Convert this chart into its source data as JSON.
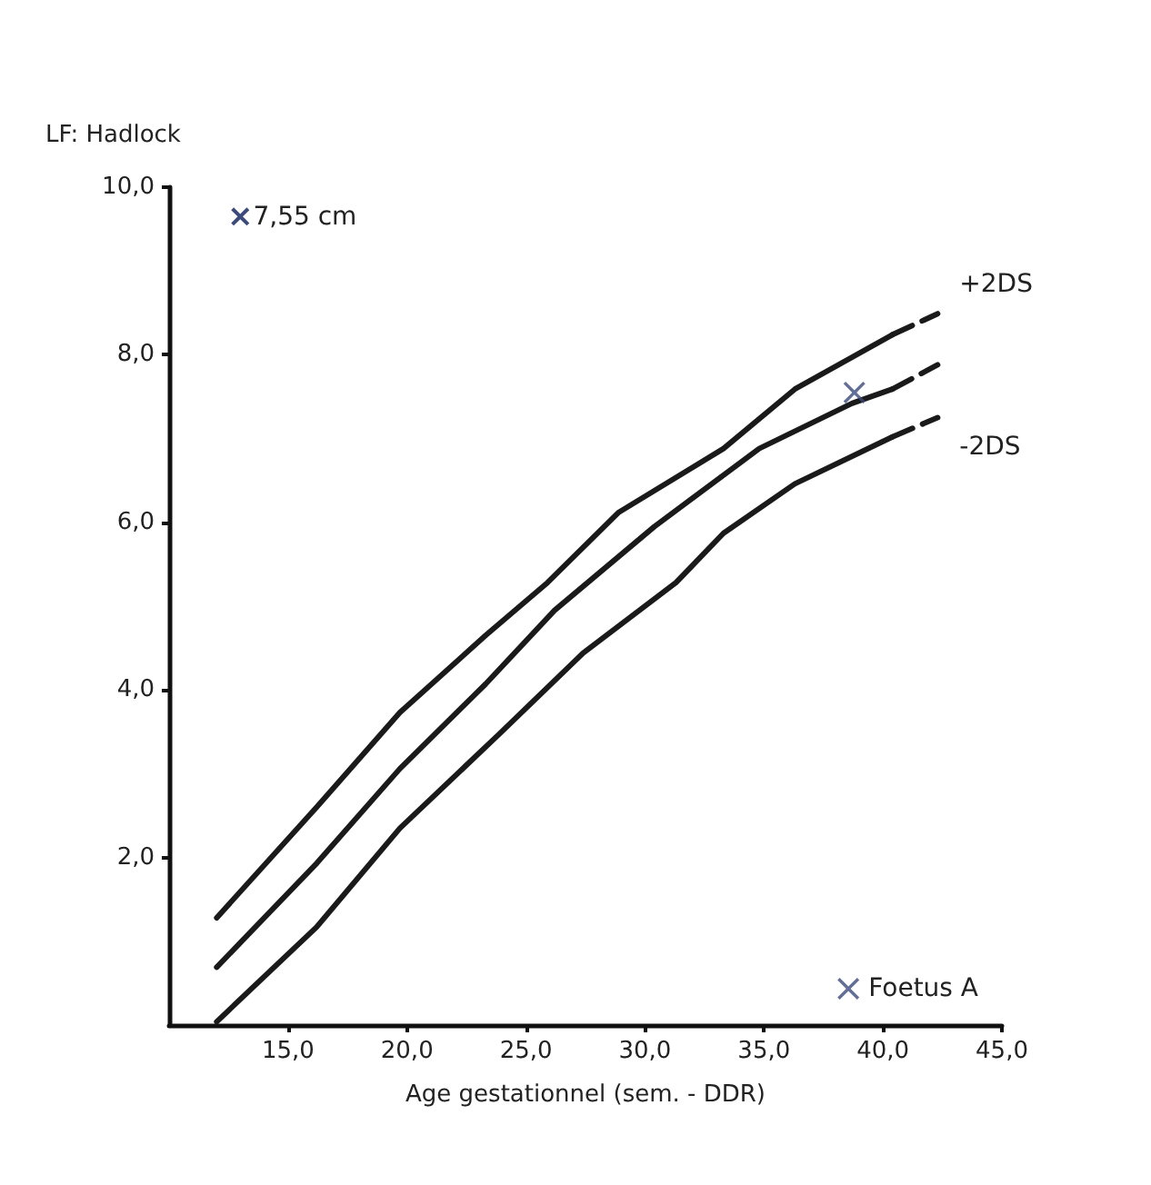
{
  "chart_data": {
    "type": "line",
    "title": "LF: Hadlock",
    "xlabel": "Age gestationnel (sem. - DDR)",
    "xlim": [
      10,
      45
    ],
    "xticks": [
      {
        "value": 15,
        "label": "15,0"
      },
      {
        "value": 20,
        "label": "20,0"
      },
      {
        "value": 25,
        "label": "25,0"
      },
      {
        "value": 30,
        "label": "30,0"
      },
      {
        "value": 35,
        "label": "35,0"
      },
      {
        "value": 40,
        "label": "40,0"
      },
      {
        "value": 45,
        "label": "45,0"
      }
    ],
    "ylim": [
      0,
      10
    ],
    "yticks": [
      {
        "value": 2,
        "label": "2,0"
      },
      {
        "value": 4,
        "label": "4,0"
      },
      {
        "value": 6,
        "label": "6,0"
      },
      {
        "value": 8,
        "label": "8,0"
      },
      {
        "value": 10,
        "label": "10,0"
      }
    ],
    "grid": false,
    "legend": "bottom right",
    "marker": "none",
    "line_style": "solid",
    "series": [
      {
        "color": "#1a1a1a",
        "x": [
          12,
          16.2,
          19.7,
          23.3,
          25.9,
          28.9,
          33.3,
          36.3,
          40.4
        ],
        "values": [
          1.28,
          2.6,
          3.73,
          4.65,
          5.28,
          6.12,
          6.88,
          7.59,
          8.24
        ]
      },
      {
        "color": "#1a1a1a",
        "x": [
          12,
          16.2,
          19.7,
          23.3,
          26.2,
          30.4,
          34.8,
          38.7,
          40.4
        ],
        "values": [
          0.69,
          1.93,
          3.06,
          4.07,
          4.95,
          5.95,
          6.88,
          7.42,
          7.59
        ]
      },
      {
        "color": "#1a1a1a",
        "x": [
          12,
          16.2,
          19.7,
          23.9,
          27.4,
          31.3,
          33.3,
          36.3,
          40.4
        ],
        "values": [
          0.04,
          1.17,
          2.35,
          3.48,
          4.44,
          5.28,
          5.87,
          6.46,
          7.02
        ]
      },
      {
        "name": "+2DS",
        "color": "#1a1a1a",
        "line_style": "dashed",
        "x": [
          40.4,
          42.3
        ],
        "values": [
          8.24,
          8.49
        ]
      },
      {
        "color": "#1a1a1a",
        "line_style": "dashed",
        "x": [
          40.4,
          42.3
        ],
        "values": [
          7.59,
          7.88
        ]
      },
      {
        "name": "-2DS",
        "color": "#1a1a1a",
        "line_style": "dashed",
        "x": [
          40.4,
          42.3
        ],
        "values": [
          7.02,
          7.25
        ]
      },
      {
        "name": "Foetus A",
        "type": "scatter",
        "marker": "cross",
        "color": "#3b4a7a",
        "x": [
          38.8
        ],
        "values": [
          7.55
        ]
      }
    ],
    "annotations": [
      "×7,55 cm"
    ]
  }
}
